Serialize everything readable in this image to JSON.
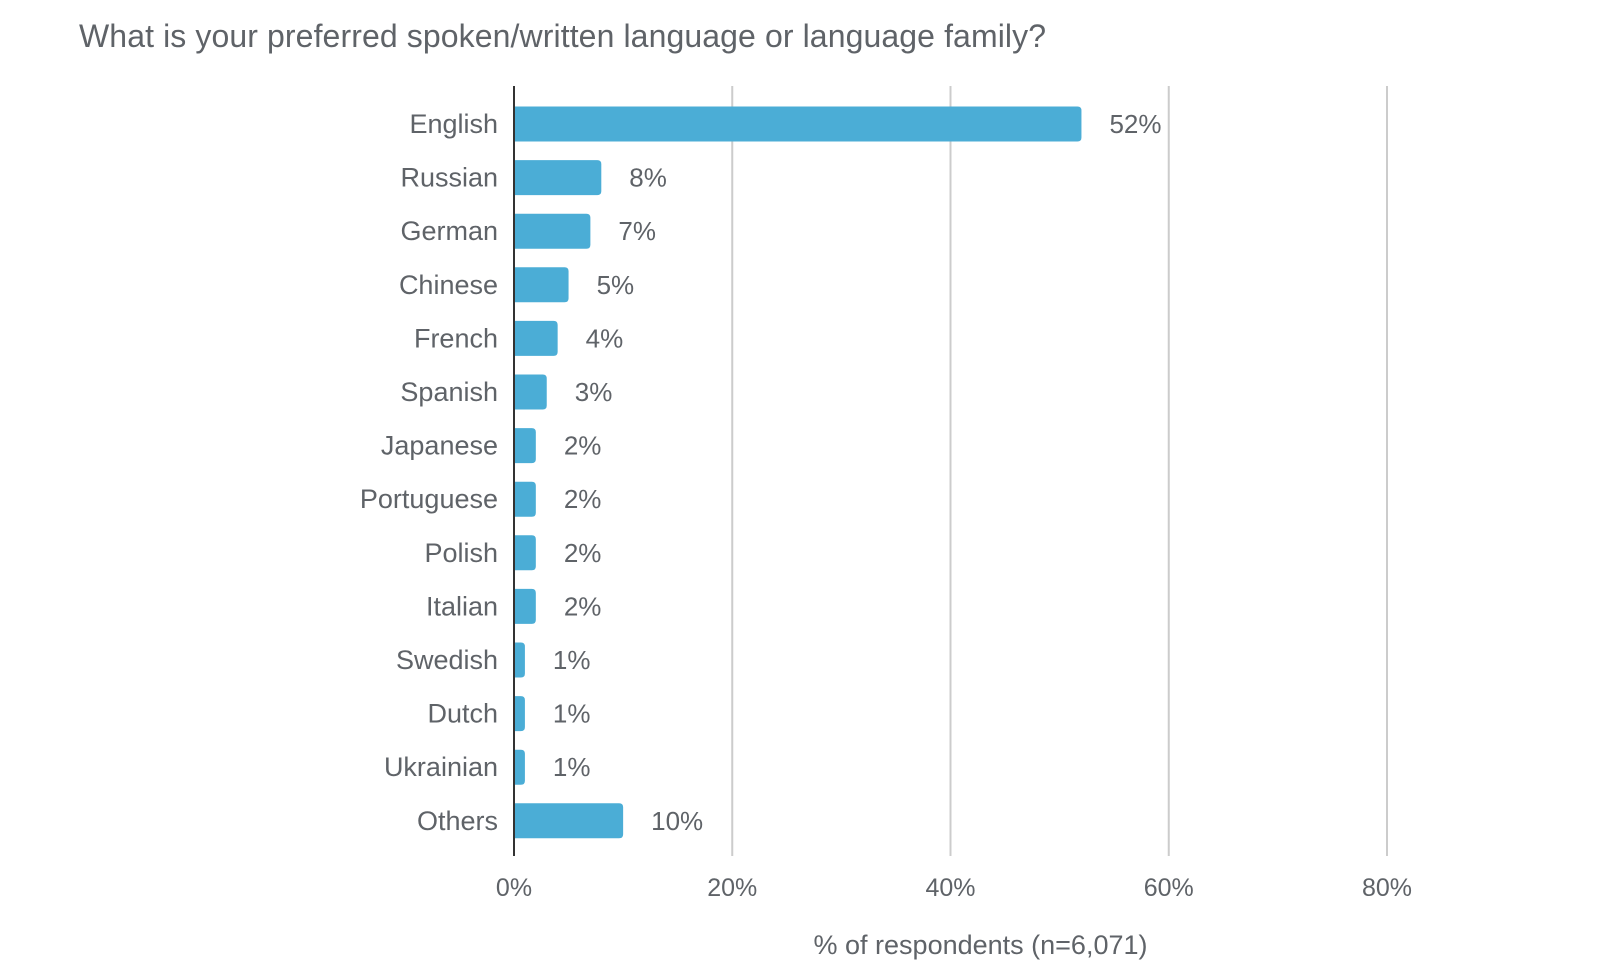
{
  "chart_data": {
    "type": "bar",
    "orientation": "horizontal",
    "title": "What is your preferred spoken/written language or language family?",
    "xlabel": "% of respondents (n=6,071)",
    "ylabel": "",
    "categories": [
      "English",
      "Russian",
      "German",
      "Chinese",
      "French",
      "Spanish",
      "Japanese",
      "Portuguese",
      "Polish",
      "Italian",
      "Swedish",
      "Dutch",
      "Ukrainian",
      "Others"
    ],
    "values": [
      52,
      8,
      7,
      5,
      4,
      3,
      2,
      2,
      2,
      2,
      1,
      1,
      1,
      10
    ],
    "data_labels": [
      "52%",
      "8%",
      "7%",
      "5%",
      "4%",
      "3%",
      "2%",
      "2%",
      "2%",
      "2%",
      "1%",
      "1%",
      "1%",
      "10%"
    ],
    "xlim": [
      0,
      80
    ],
    "xticks": [
      0,
      20,
      40,
      60,
      80
    ],
    "xtick_labels": [
      "0%",
      "20%",
      "40%",
      "60%",
      "80%"
    ],
    "grid": "vertical",
    "legend": "none",
    "colors": {
      "bar": "#4badd6",
      "grid": "#cccccc",
      "axis": "#333333",
      "text": "#5f6368"
    }
  }
}
